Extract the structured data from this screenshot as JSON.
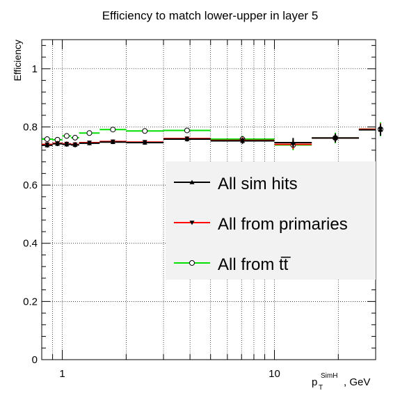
{
  "chart_data": {
    "type": "line",
    "title": "Efficiency to match lower-upper in layer 5",
    "xlabel": {
      "main": "p",
      "sub": "T",
      "sup": "SimH",
      "suffix": ", GeV"
    },
    "ylabel": "Efficiency",
    "xscale": "log",
    "xlim": [
      0.8,
      30
    ],
    "ylim": [
      0,
      1.1
    ],
    "yticks": [
      0,
      0.2,
      0.4,
      0.6,
      0.8,
      1
    ],
    "ytick_labels": [
      "0",
      "0.2",
      "0.4",
      "0.6",
      "0.8",
      "1"
    ],
    "xticks": [
      1,
      10
    ],
    "xtick_labels": [
      "1",
      "10"
    ],
    "grid": true,
    "legend_position": "right",
    "series": [
      {
        "name": "All sim hits",
        "color": "#000000",
        "marker": "triangle-up",
        "points": [
          {
            "xlo": 0.8,
            "xhi": 0.9,
            "y": 0.737,
            "err": 0.008
          },
          {
            "xlo": 0.9,
            "xhi": 1.0,
            "y": 0.742,
            "err": 0.008
          },
          {
            "xlo": 1.0,
            "xhi": 1.1,
            "y": 0.74,
            "err": 0.008
          },
          {
            "xlo": 1.1,
            "xhi": 1.2,
            "y": 0.738,
            "err": 0.008
          },
          {
            "xlo": 1.2,
            "xhi": 1.5,
            "y": 0.744,
            "err": 0.007
          },
          {
            "xlo": 1.5,
            "xhi": 2.0,
            "y": 0.748,
            "err": 0.007
          },
          {
            "xlo": 2.0,
            "xhi": 3.0,
            "y": 0.746,
            "err": 0.007
          },
          {
            "xlo": 3.0,
            "xhi": 5.0,
            "y": 0.758,
            "err": 0.008
          },
          {
            "xlo": 5.0,
            "xhi": 10.0,
            "y": 0.752,
            "err": 0.01
          },
          {
            "xlo": 10.0,
            "xhi": 15.0,
            "y": 0.746,
            "err": 0.016
          },
          {
            "xlo": 15.0,
            "xhi": 25.0,
            "y": 0.762,
            "err": 0.015
          },
          {
            "xlo": 25.0,
            "xhi": 40.0,
            "y": 0.79,
            "err": 0.02
          }
        ]
      },
      {
        "name": "All from primaries",
        "color": "#ff0000",
        "marker": "triangle-down",
        "points": [
          {
            "xlo": 0.8,
            "xhi": 0.9,
            "y": 0.74,
            "err": 0.008
          },
          {
            "xlo": 0.9,
            "xhi": 1.0,
            "y": 0.744,
            "err": 0.008
          },
          {
            "xlo": 1.0,
            "xhi": 1.1,
            "y": 0.742,
            "err": 0.008
          },
          {
            "xlo": 1.1,
            "xhi": 1.2,
            "y": 0.74,
            "err": 0.008
          },
          {
            "xlo": 1.2,
            "xhi": 1.5,
            "y": 0.746,
            "err": 0.007
          },
          {
            "xlo": 1.5,
            "xhi": 2.0,
            "y": 0.75,
            "err": 0.007
          },
          {
            "xlo": 2.0,
            "xhi": 3.0,
            "y": 0.748,
            "err": 0.007
          },
          {
            "xlo": 3.0,
            "xhi": 5.0,
            "y": 0.76,
            "err": 0.008
          },
          {
            "xlo": 5.0,
            "xhi": 10.0,
            "y": 0.754,
            "err": 0.01
          },
          {
            "xlo": 10.0,
            "xhi": 15.0,
            "y": 0.74,
            "err": 0.016
          },
          {
            "xlo": 15.0,
            "xhi": 25.0,
            "y": 0.762,
            "err": 0.015
          },
          {
            "xlo": 25.0,
            "xhi": 40.0,
            "y": 0.792,
            "err": 0.02
          }
        ]
      },
      {
        "name": "All from tt̅",
        "color": "#00e000",
        "marker": "circle-open",
        "points": [
          {
            "xlo": 0.8,
            "xhi": 0.9,
            "y": 0.758,
            "err": 0.009
          },
          {
            "xlo": 0.9,
            "xhi": 1.0,
            "y": 0.756,
            "err": 0.009
          },
          {
            "xlo": 1.0,
            "xhi": 1.1,
            "y": 0.769,
            "err": 0.009
          },
          {
            "xlo": 1.1,
            "xhi": 1.2,
            "y": 0.763,
            "err": 0.009
          },
          {
            "xlo": 1.2,
            "xhi": 1.5,
            "y": 0.779,
            "err": 0.008
          },
          {
            "xlo": 1.5,
            "xhi": 2.0,
            "y": 0.791,
            "err": 0.008
          },
          {
            "xlo": 2.0,
            "xhi": 3.0,
            "y": 0.786,
            "err": 0.008
          },
          {
            "xlo": 3.0,
            "xhi": 5.0,
            "y": 0.788,
            "err": 0.008
          },
          {
            "xlo": 5.0,
            "xhi": 10.0,
            "y": 0.758,
            "err": 0.011
          },
          {
            "xlo": 10.0,
            "xhi": 15.0,
            "y": 0.738,
            "err": 0.018
          },
          {
            "xlo": 15.0,
            "xhi": 25.0,
            "y": 0.762,
            "err": 0.018
          },
          {
            "xlo": 25.0,
            "xhi": 40.0,
            "y": 0.792,
            "err": 0.024
          }
        ]
      }
    ]
  }
}
